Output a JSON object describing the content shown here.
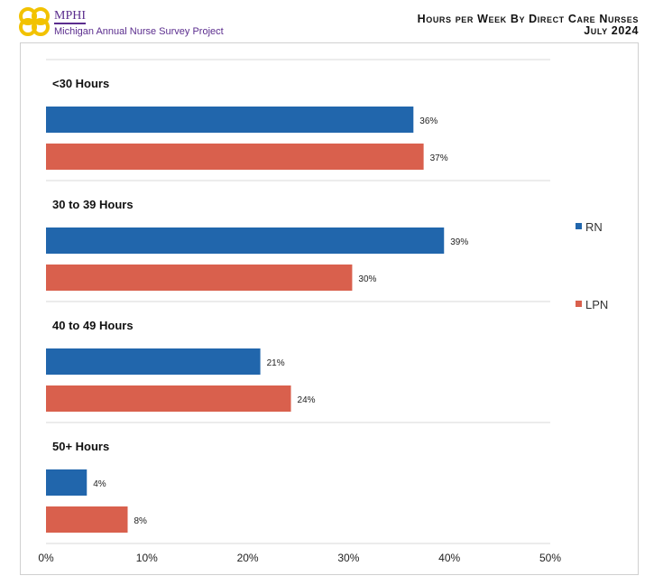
{
  "header": {
    "org": "MPHI",
    "subtitle": "Michigan Annual Nurse Survey Project",
    "title": "Hours per Week By Direct Care Nurses",
    "date": "July 2024"
  },
  "chart_data": {
    "type": "bar",
    "orientation": "horizontal",
    "categories": [
      "<30 Hours",
      "30 to 39 Hours",
      "40 to 49 Hours",
      "50+ Hours"
    ],
    "series": [
      {
        "name": "RN",
        "color": "#2166ac",
        "values": [
          36,
          39,
          21,
          4
        ]
      },
      {
        "name": "LPN",
        "color": "#d9604d",
        "values": [
          37,
          30,
          24,
          8
        ]
      }
    ],
    "xlim": [
      0,
      50
    ],
    "xticks": [
      "0%",
      "10%",
      "20%",
      "30%",
      "40%",
      "50%"
    ],
    "data_labels": [
      [
        "36%",
        "37%"
      ],
      [
        "39%",
        "30%"
      ],
      [
        "21%",
        "24%"
      ],
      [
        "4%",
        "8%"
      ]
    ],
    "legend_position": "right",
    "grid": "horizontal separators"
  }
}
